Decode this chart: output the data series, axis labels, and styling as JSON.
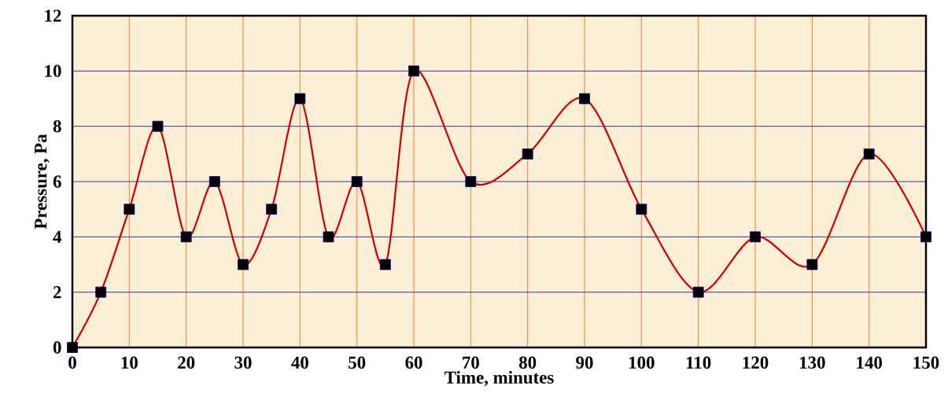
{
  "chart_data": {
    "type": "line",
    "xlabel": "Time, minutes",
    "ylabel": "Pressure, Pa",
    "x": [
      0,
      5,
      10,
      15,
      20,
      25,
      30,
      35,
      40,
      45,
      50,
      55,
      60,
      70,
      80,
      90,
      100,
      110,
      120,
      130,
      140,
      150
    ],
    "series": [
      {
        "color": "#cc0000",
        "values": [
          0,
          2,
          5,
          8,
          4,
          6,
          3,
          5,
          9,
          4,
          6,
          3,
          10,
          6,
          7,
          9,
          5,
          2,
          4,
          3,
          7,
          4
        ]
      }
    ],
    "xlim": [
      0,
      150
    ],
    "ylim": [
      0,
      12
    ],
    "xticks": [
      0,
      10,
      20,
      30,
      40,
      50,
      60,
      70,
      80,
      90,
      100,
      110,
      120,
      130,
      140,
      150
    ],
    "yticks": [
      0,
      2,
      4,
      6,
      8,
      10,
      12
    ],
    "grid": true,
    "marker": "square",
    "line_style": "solid"
  }
}
